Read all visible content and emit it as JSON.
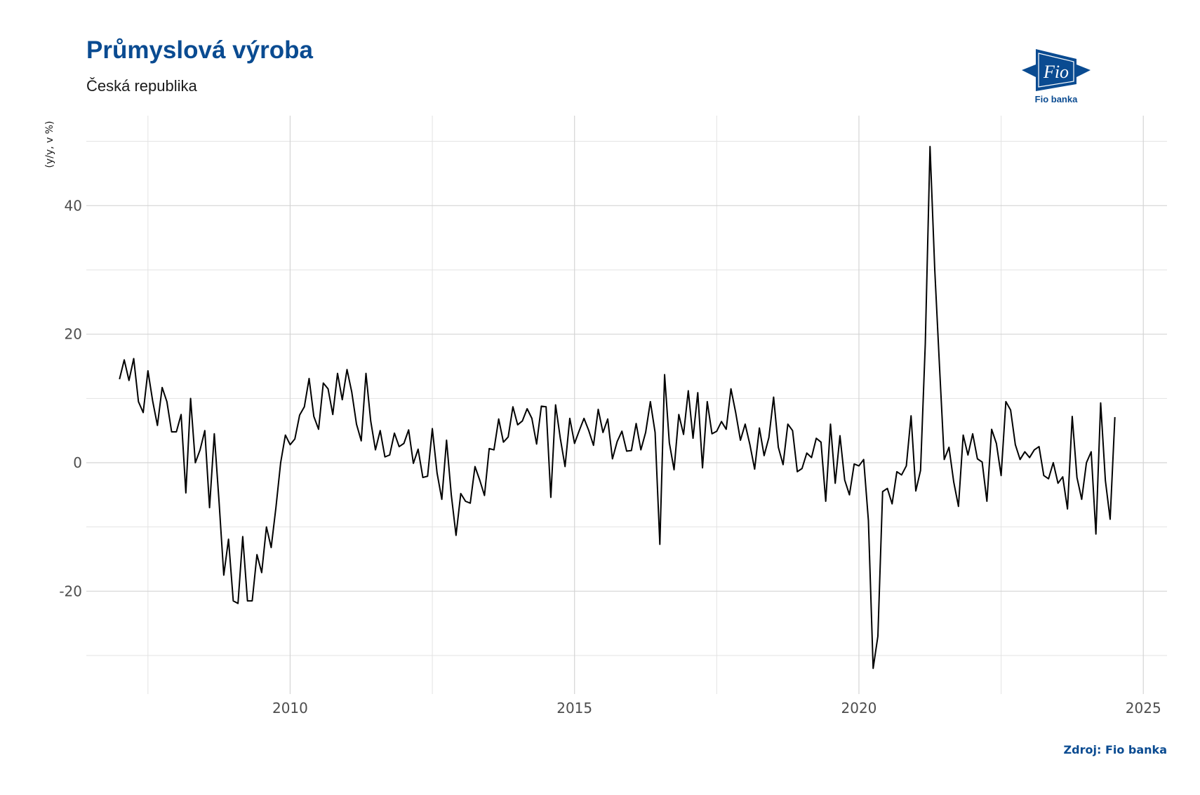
{
  "header": {
    "title": "Průmyslová výroba",
    "subtitle": "Česká republika"
  },
  "logo": {
    "text": "Fio",
    "caption": "Fio banka",
    "color": "#0a4b91"
  },
  "footer": {
    "source": "Zdroj: Fio banka"
  },
  "chart_data": {
    "type": "line",
    "title": "Průmyslová výroba",
    "subtitle": "Česká republika",
    "xlabel": "",
    "ylabel": "(y/y, v %)",
    "x_ticks": [
      2010,
      2015,
      2020,
      2025
    ],
    "y_ticks": [
      -20,
      0,
      20,
      40
    ],
    "xlim": [
      "2006-06",
      "2025-06"
    ],
    "ylim": [
      -36,
      54
    ],
    "grid": true,
    "line_color": "#000000",
    "series": [
      {
        "name": "",
        "start": "2007-01",
        "frequency": "monthly",
        "values": [
          13.0,
          16.0,
          12.8,
          16.2,
          9.5,
          7.8,
          14.3,
          9.6,
          5.8,
          11.7,
          9.5,
          4.8,
          4.8,
          7.5,
          -4.7,
          10.0,
          0.0,
          2.0,
          5.0,
          -7.0,
          4.5,
          -6.0,
          -17.5,
          -11.9,
          -21.5,
          -21.9,
          -11.5,
          -21.5,
          -21.5,
          -14.3,
          -17.1,
          -10.0,
          -13.2,
          -7.0,
          0.0,
          4.3,
          2.8,
          3.7,
          7.4,
          8.7,
          13.1,
          7.2,
          5.2,
          12.4,
          11.5,
          7.5,
          13.9,
          9.8,
          14.5,
          11.0,
          6.0,
          3.4,
          13.9,
          6.5,
          2.0,
          5.0,
          0.9,
          1.2,
          4.6,
          2.5,
          3.0,
          5.1,
          -0.1,
          2.1,
          -2.3,
          -2.1,
          5.3,
          -1.6,
          -5.7,
          3.5,
          -5.0,
          -11.3,
          -4.8,
          -6.0,
          -6.3,
          -0.6,
          -2.7,
          -5.1,
          2.2,
          2.0,
          6.8,
          3.2,
          4.0,
          8.7,
          5.9,
          6.5,
          8.4,
          6.9,
          2.9,
          8.8,
          8.7,
          -5.4,
          9.0,
          3.8,
          -0.6,
          6.9,
          3.0,
          5.0,
          6.9,
          5.0,
          2.7,
          8.3,
          4.7,
          6.8,
          0.6,
          3.3,
          4.9,
          1.8,
          1.9,
          6.1,
          2.0,
          4.7,
          9.5,
          4.7,
          -12.7,
          13.7,
          3.1,
          -1.1,
          7.5,
          4.4,
          11.2,
          3.8,
          10.9,
          -0.8,
          9.5,
          4.5,
          4.9,
          6.4,
          5.2,
          11.5,
          7.8,
          3.5,
          6.0,
          2.8,
          -1.0,
          5.4,
          1.1,
          3.9,
          10.2,
          2.4,
          -0.3,
          6.0,
          5.0,
          -1.4,
          -0.9,
          1.5,
          0.8,
          3.8,
          3.2,
          -6.0,
          6.0,
          -3.2,
          4.2,
          -2.7,
          -5.0,
          -0.2,
          -0.5,
          0.5,
          -9.0,
          -32.0,
          -27.0,
          -4.5,
          -4.0,
          -6.4,
          -1.4,
          -1.9,
          -0.5,
          7.3,
          -4.4,
          -1.2,
          18.5,
          49.2,
          30.0,
          15.0,
          0.5,
          2.4,
          -3.0,
          -6.8,
          4.3,
          1.2,
          4.5,
          0.6,
          0.1,
          -6.0,
          5.2,
          3.0,
          -2.0,
          9.5,
          8.2,
          2.8,
          0.5,
          1.7,
          0.8,
          2.0,
          2.5,
          -2.0,
          -2.5,
          0.0,
          -3.2,
          -2.2,
          -7.2,
          7.2,
          -2.3,
          -5.7,
          0.0,
          1.7,
          -11.1,
          9.3,
          -2.8,
          -8.8,
          7.1
        ]
      }
    ]
  }
}
